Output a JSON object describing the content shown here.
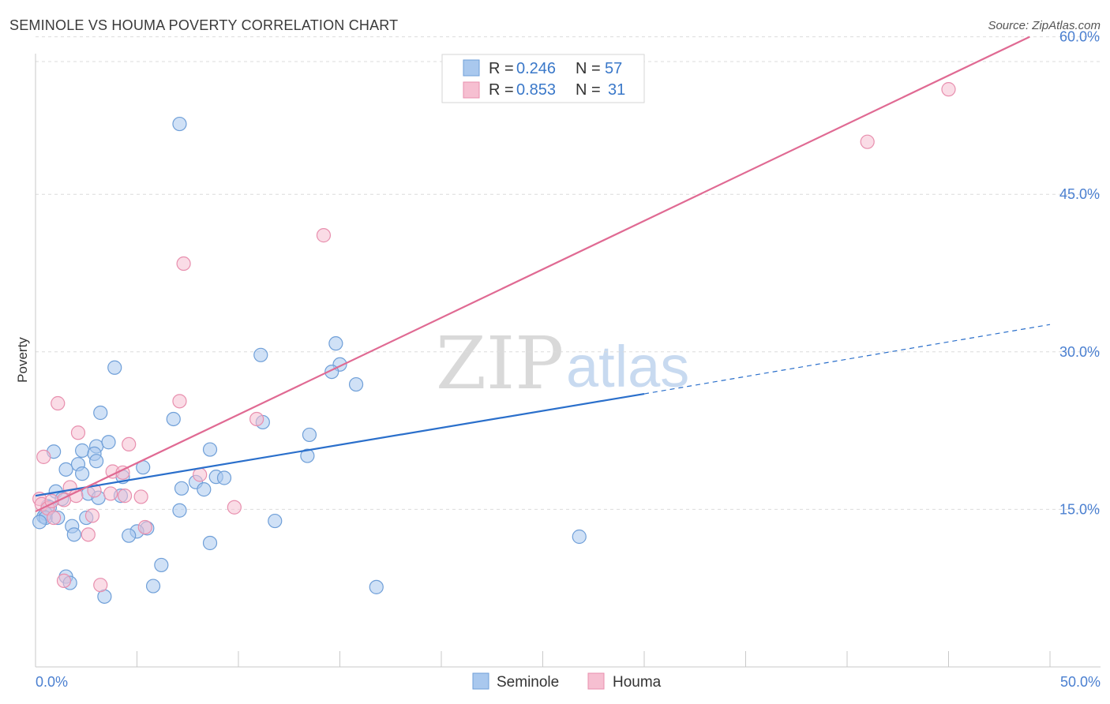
{
  "header": {
    "title": "SEMINOLE VS HOUMA POVERTY CORRELATION CHART",
    "source": "Source: ZipAtlas.com"
  },
  "watermark": {
    "zip": "ZIP",
    "atlas": "atlas"
  },
  "legend": {
    "seminole": {
      "r_label": "R = ",
      "r_value": "0.246",
      "n_label": "N = ",
      "n_value": "57"
    },
    "houma": {
      "r_label": "R = ",
      "r_value": "0.853",
      "n_label": "N = ",
      "n_value": "31"
    }
  },
  "chart_data": {
    "type": "scatter",
    "title": "SEMINOLE VS HOUMA POVERTY CORRELATION CHART",
    "xlabel": "",
    "ylabel": "Poverty",
    "xlim": [
      0,
      50
    ],
    "ylim": [
      0,
      62
    ],
    "x_tick_labels": [
      "0.0%",
      "50.0%"
    ],
    "y_ticks": [
      15,
      30,
      45,
      60
    ],
    "y_tick_labels": [
      "15.0%",
      "30.0%",
      "45.0%",
      "60.0%"
    ],
    "grid": true,
    "legend_position": "bottom-center",
    "colors": {
      "seminole_fill": "#a9c8ee",
      "seminole_stroke": "#6f9fd8",
      "seminole_line": "#2a6fcb",
      "houma_fill": "#f6bfd1",
      "houma_stroke": "#e88fae",
      "houma_line": "#e06a93"
    },
    "series": [
      {
        "name": "Seminole",
        "trend": {
          "x0": 0,
          "y0": 16.3,
          "x1": 30,
          "y1": 26.0,
          "dash_to_x": 50,
          "dash_to_y": 32.6
        },
        "points": [
          [
            7.1,
            51.7
          ],
          [
            14.8,
            30.8
          ],
          [
            11.1,
            29.7
          ],
          [
            15.0,
            28.8
          ],
          [
            3.9,
            28.5
          ],
          [
            14.6,
            28.1
          ],
          [
            15.8,
            26.9
          ],
          [
            3.2,
            24.2
          ],
          [
            6.8,
            23.6
          ],
          [
            11.2,
            23.3
          ],
          [
            13.5,
            22.1
          ],
          [
            0.9,
            20.5
          ],
          [
            2.3,
            20.6
          ],
          [
            3.0,
            21.0
          ],
          [
            3.6,
            21.4
          ],
          [
            8.6,
            20.7
          ],
          [
            2.9,
            20.3
          ],
          [
            13.4,
            20.1
          ],
          [
            2.1,
            19.3
          ],
          [
            3.0,
            19.6
          ],
          [
            5.3,
            19.0
          ],
          [
            1.5,
            18.8
          ],
          [
            2.3,
            18.4
          ],
          [
            4.3,
            18.1
          ],
          [
            8.9,
            18.1
          ],
          [
            9.3,
            18.0
          ],
          [
            7.9,
            17.6
          ],
          [
            7.2,
            17.0
          ],
          [
            8.3,
            16.9
          ],
          [
            1.0,
            16.7
          ],
          [
            2.6,
            16.5
          ],
          [
            4.2,
            16.3
          ],
          [
            3.1,
            16.1
          ],
          [
            1.3,
            16.0
          ],
          [
            0.6,
            15.3
          ],
          [
            0.7,
            15.2
          ],
          [
            0.5,
            14.6
          ],
          [
            0.4,
            14.3
          ],
          [
            0.5,
            14.2
          ],
          [
            0.2,
            13.8
          ],
          [
            1.1,
            14.2
          ],
          [
            2.5,
            14.2
          ],
          [
            7.1,
            14.9
          ],
          [
            11.8,
            13.9
          ],
          [
            1.8,
            13.4
          ],
          [
            5.5,
            13.2
          ],
          [
            5.0,
            12.9
          ],
          [
            1.9,
            12.6
          ],
          [
            4.6,
            12.5
          ],
          [
            8.6,
            11.8
          ],
          [
            26.8,
            12.4
          ],
          [
            6.2,
            9.7
          ],
          [
            1.5,
            8.6
          ],
          [
            1.7,
            8.0
          ],
          [
            5.8,
            7.7
          ],
          [
            16.8,
            7.6
          ],
          [
            3.4,
            6.7
          ]
        ]
      },
      {
        "name": "Houma",
        "trend": {
          "x0": 0,
          "y0": 14.8,
          "x1": 49.0,
          "y1": 60.0
        },
        "points": [
          [
            45.0,
            55.0
          ],
          [
            41.0,
            50.0
          ],
          [
            14.2,
            41.1
          ],
          [
            7.3,
            38.4
          ],
          [
            1.1,
            25.1
          ],
          [
            7.1,
            25.3
          ],
          [
            10.9,
            23.6
          ],
          [
            2.1,
            22.3
          ],
          [
            4.6,
            21.2
          ],
          [
            0.4,
            20.0
          ],
          [
            3.8,
            18.6
          ],
          [
            4.3,
            18.5
          ],
          [
            8.1,
            18.3
          ],
          [
            1.7,
            17.1
          ],
          [
            2.9,
            16.8
          ],
          [
            3.7,
            16.5
          ],
          [
            2.0,
            16.3
          ],
          [
            4.4,
            16.3
          ],
          [
            5.2,
            16.2
          ],
          [
            0.2,
            16.0
          ],
          [
            1.4,
            15.9
          ],
          [
            0.3,
            15.5
          ],
          [
            0.6,
            15.1
          ],
          [
            9.8,
            15.2
          ],
          [
            0.9,
            14.2
          ],
          [
            2.8,
            14.4
          ],
          [
            5.4,
            13.3
          ],
          [
            2.6,
            12.6
          ],
          [
            1.4,
            8.2
          ],
          [
            3.2,
            7.8
          ],
          [
            0.8,
            15.8
          ]
        ]
      }
    ]
  },
  "bottom_legend": {
    "seminole": "Seminole",
    "houma": "Houma"
  }
}
